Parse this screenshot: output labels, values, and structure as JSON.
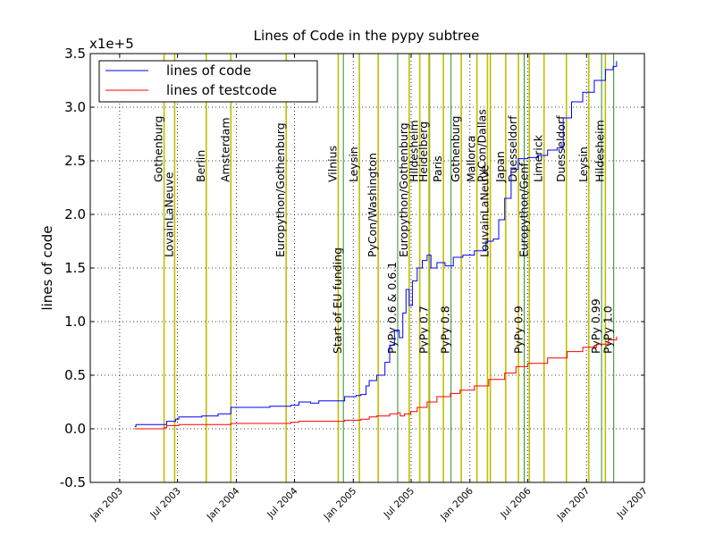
{
  "chart_data": {
    "type": "line",
    "title": "Lines of Code in the pypy subtree",
    "ylabel": "lines of code",
    "xlabel": "",
    "y_scale_label": "x1e+5",
    "ylim": [
      -0.5,
      3.5
    ],
    "xlim": [
      "2002-10-01",
      "2007-07-01"
    ],
    "yticks": [
      "-0.5",
      "0.0",
      "0.5",
      "1.0",
      "1.5",
      "2.0",
      "2.5",
      "3.0",
      "3.5"
    ],
    "xticks": [
      "Jan 2003",
      "Jul 2003",
      "Jan 2004",
      "Jul 2004",
      "Jan 2005",
      "Jul 2005",
      "Jan 2006",
      "Jul 2006",
      "Jan 2007",
      "Jul 2007"
    ],
    "grid": true,
    "legend_position": "top-left",
    "colors": {
      "lines of code": "#0000ff",
      "lines of testcode": "#ff0000",
      "sprint": "#bfbf00",
      "release": "#2e8b2e"
    },
    "series": [
      {
        "name": "lines of code",
        "color": "#0000ff",
        "points": [
          [
            "2003-02-17",
            0.02
          ],
          [
            "2003-02-21",
            0.04
          ],
          [
            "2003-05-20",
            0.04
          ],
          [
            "2003-05-28",
            0.07
          ],
          [
            "2003-06-25",
            0.09
          ],
          [
            "2003-07-05",
            0.11
          ],
          [
            "2003-09-15",
            0.12
          ],
          [
            "2003-11-05",
            0.14
          ],
          [
            "2003-12-15",
            0.2
          ],
          [
            "2004-04-15",
            0.21
          ],
          [
            "2004-06-20",
            0.22
          ],
          [
            "2004-07-15",
            0.25
          ],
          [
            "2004-08-20",
            0.24
          ],
          [
            "2004-09-15",
            0.26
          ],
          [
            "2004-11-25",
            0.26
          ],
          [
            "2004-12-05",
            0.3
          ],
          [
            "2005-01-10",
            0.31
          ],
          [
            "2005-01-25",
            0.32
          ],
          [
            "2005-02-10",
            0.4
          ],
          [
            "2005-02-20",
            0.45
          ],
          [
            "2005-03-15",
            0.5
          ],
          [
            "2005-04-10",
            0.62
          ],
          [
            "2005-04-25",
            0.78
          ],
          [
            "2005-05-10",
            0.92
          ],
          [
            "2005-05-25",
            0.85
          ],
          [
            "2005-06-05",
            1.08
          ],
          [
            "2005-06-15",
            1.3
          ],
          [
            "2005-06-25",
            1.15
          ],
          [
            "2005-07-05",
            1.38
          ],
          [
            "2005-07-20",
            1.5
          ],
          [
            "2005-08-05",
            1.57
          ],
          [
            "2005-08-20",
            1.62
          ],
          [
            "2005-09-01",
            1.5
          ],
          [
            "2005-09-20",
            1.55
          ],
          [
            "2005-10-15",
            1.52
          ],
          [
            "2005-11-10",
            1.6
          ],
          [
            "2005-12-10",
            1.62
          ],
          [
            "2006-01-15",
            1.66
          ],
          [
            "2006-02-20",
            1.75
          ],
          [
            "2006-03-15",
            1.77
          ],
          [
            "2006-04-01",
            1.95
          ],
          [
            "2006-04-20",
            2.15
          ],
          [
            "2006-05-10",
            2.42
          ],
          [
            "2006-06-01",
            2.52
          ],
          [
            "2006-07-01",
            2.53
          ],
          [
            "2006-08-01",
            2.55
          ],
          [
            "2006-09-01",
            2.6
          ],
          [
            "2006-10-01",
            2.62
          ],
          [
            "2006-10-20",
            2.9
          ],
          [
            "2006-11-15",
            3.05
          ],
          [
            "2006-12-20",
            3.14
          ],
          [
            "2007-01-25",
            3.25
          ],
          [
            "2007-03-01",
            3.35
          ],
          [
            "2007-03-25",
            3.38
          ],
          [
            "2007-04-05",
            3.43
          ]
        ]
      },
      {
        "name": "lines of testcode",
        "color": "#ff0000",
        "points": [
          [
            "2003-02-17",
            0.0
          ],
          [
            "2003-05-20",
            0.01
          ],
          [
            "2003-05-28",
            0.03
          ],
          [
            "2003-07-05",
            0.04
          ],
          [
            "2003-12-15",
            0.05
          ],
          [
            "2004-06-20",
            0.06
          ],
          [
            "2004-07-15",
            0.07
          ],
          [
            "2004-12-05",
            0.08
          ],
          [
            "2005-01-25",
            0.09
          ],
          [
            "2005-02-20",
            0.11
          ],
          [
            "2005-03-15",
            0.12
          ],
          [
            "2005-04-25",
            0.14
          ],
          [
            "2005-05-20",
            0.15
          ],
          [
            "2005-05-28",
            0.12
          ],
          [
            "2005-06-10",
            0.14
          ],
          [
            "2005-06-30",
            0.16
          ],
          [
            "2005-07-20",
            0.2
          ],
          [
            "2005-08-20",
            0.25
          ],
          [
            "2005-09-20",
            0.3
          ],
          [
            "2005-11-01",
            0.33
          ],
          [
            "2005-12-01",
            0.36
          ],
          [
            "2006-01-15",
            0.4
          ],
          [
            "2006-03-01",
            0.46
          ],
          [
            "2006-04-20",
            0.52
          ],
          [
            "2006-05-25",
            0.58
          ],
          [
            "2006-07-01",
            0.61
          ],
          [
            "2006-09-01",
            0.66
          ],
          [
            "2006-11-01",
            0.72
          ],
          [
            "2006-12-20",
            0.76
          ],
          [
            "2007-02-01",
            0.79
          ],
          [
            "2007-03-10",
            0.83
          ],
          [
            "2007-04-05",
            0.86
          ]
        ]
      }
    ],
    "events": [
      {
        "date": "2003-05-20",
        "label": "Gothenburg",
        "kind": "sprint"
      },
      {
        "date": "2003-06-22",
        "label": "LovainLaNeuve",
        "kind": "sprint"
      },
      {
        "date": "2003-09-29",
        "label": "Berlin",
        "kind": "sprint"
      },
      {
        "date": "2003-12-15",
        "label": "Amsterdam",
        "kind": "sprint"
      },
      {
        "date": "2004-06-05",
        "label": "Europython/Gothenburg",
        "kind": "sprint"
      },
      {
        "date": "2004-11-15",
        "label": "Vilnius",
        "kind": "sprint"
      },
      {
        "date": "2004-12-01",
        "label": "Start of EU funding",
        "kind": "release"
      },
      {
        "date": "2005-01-20",
        "label": "Leysin",
        "kind": "sprint"
      },
      {
        "date": "2005-03-20",
        "label": "PyCon/Washington",
        "kind": "sprint"
      },
      {
        "date": "2005-05-20",
        "label": "PyPy 0.6 & 0.6.1",
        "kind": "release"
      },
      {
        "date": "2005-06-25",
        "label": "Europython/Gothenburg",
        "kind": "sprint"
      },
      {
        "date": "2005-07-28",
        "label": "Hildesheim",
        "kind": "sprint"
      },
      {
        "date": "2005-08-28",
        "label": "PyPy 0.7",
        "kind": "release"
      },
      {
        "date": "2005-08-26",
        "label": "Heidelberg",
        "kind": "sprint"
      },
      {
        "date": "2005-10-10",
        "label": "Paris",
        "kind": "sprint"
      },
      {
        "date": "2005-11-03",
        "label": "PyPy 0.8",
        "kind": "release"
      },
      {
        "date": "2005-12-05",
        "label": "Gothenburg",
        "kind": "sprint"
      },
      {
        "date": "2006-01-23",
        "label": "Mallorca",
        "kind": "sprint"
      },
      {
        "date": "2006-02-25",
        "label": "PyCon/Dallas",
        "kind": "sprint"
      },
      {
        "date": "2006-03-06",
        "label": "LouvainLaNeuve",
        "kind": "sprint"
      },
      {
        "date": "2006-04-23",
        "label": "Japan",
        "kind": "sprint"
      },
      {
        "date": "2006-06-02",
        "label": "Duesseldorf",
        "kind": "sprint"
      },
      {
        "date": "2006-06-20",
        "label": "PyPy 0.9",
        "kind": "release"
      },
      {
        "date": "2006-07-06",
        "label": "Europython/Genf",
        "kind": "sprint"
      },
      {
        "date": "2006-08-21",
        "label": "Limerick",
        "kind": "sprint"
      },
      {
        "date": "2006-10-30",
        "label": "Duesseldorf",
        "kind": "sprint"
      },
      {
        "date": "2007-01-08",
        "label": "Leysin",
        "kind": "sprint"
      },
      {
        "date": "2007-02-17",
        "label": "PyPy 0.99",
        "kind": "release"
      },
      {
        "date": "2007-03-01",
        "label": "Hildesheim",
        "kind": "sprint"
      },
      {
        "date": "2007-03-27",
        "label": "PyPy 1.0",
        "kind": "release"
      }
    ]
  }
}
